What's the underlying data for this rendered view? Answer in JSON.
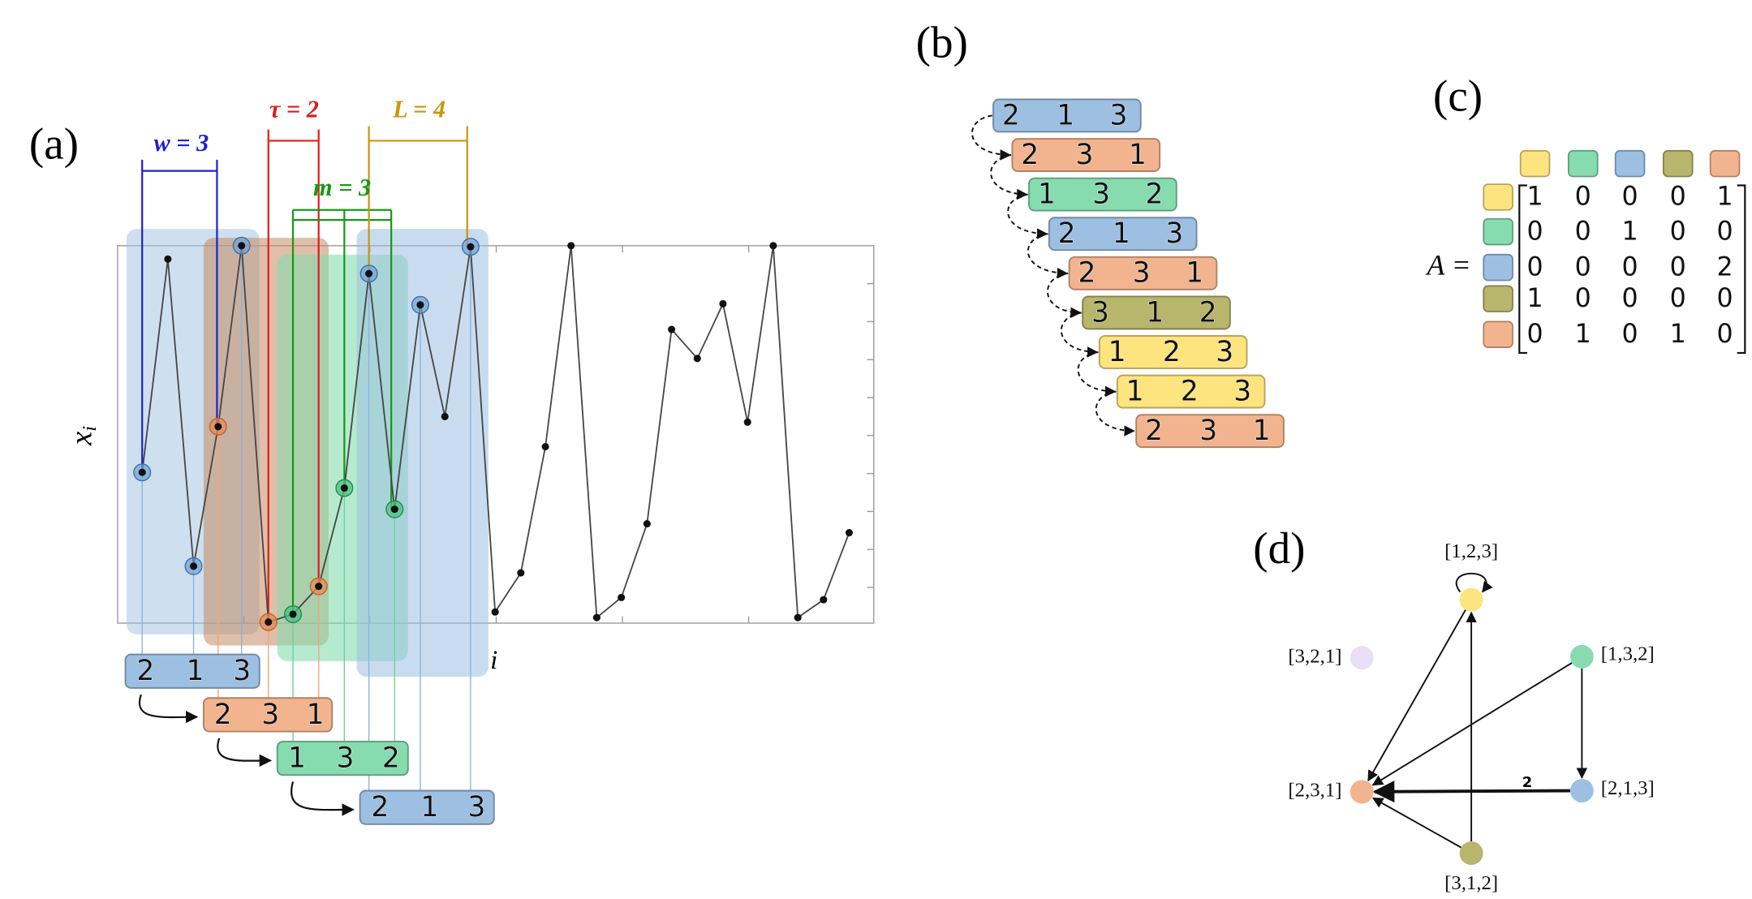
{
  "panel_a": {
    "label": "(a)",
    "y_label": {
      "symbol": "x",
      "subscript": "i"
    },
    "x_label": "i",
    "parameters": [
      {
        "text": "w = 3",
        "color": "#1f1fd6"
      },
      {
        "text": "τ = 2",
        "color": "#e01b1b"
      },
      {
        "text": "m = 3",
        "color": "#159a15"
      },
      {
        "text": "L = 4",
        "color": "#c8960c"
      }
    ],
    "patterns": [
      {
        "digits": [
          2,
          1,
          3
        ],
        "color": "#9dbfe2"
      },
      {
        "digits": [
          2,
          3,
          1
        ],
        "color": "#f2b48e"
      },
      {
        "digits": [
          1,
          3,
          2
        ],
        "color": "#86dcae"
      },
      {
        "digits": [
          2,
          1,
          3
        ],
        "color": "#9dbfe2"
      }
    ]
  },
  "panel_b": {
    "label": "(b)",
    "patterns": [
      {
        "digits": [
          2,
          1,
          3
        ],
        "color": "#9dbfe2"
      },
      {
        "digits": [
          2,
          3,
          1
        ],
        "color": "#f2b48e"
      },
      {
        "digits": [
          1,
          3,
          2
        ],
        "color": "#86dcae"
      },
      {
        "digits": [
          2,
          1,
          3
        ],
        "color": "#9dbfe2"
      },
      {
        "digits": [
          2,
          3,
          1
        ],
        "color": "#f2b48e"
      },
      {
        "digits": [
          3,
          1,
          2
        ],
        "color": "#b8b56c"
      },
      {
        "digits": [
          1,
          2,
          3
        ],
        "color": "#fde47e"
      },
      {
        "digits": [
          1,
          2,
          3
        ],
        "color": "#fde47e"
      },
      {
        "digits": [
          2,
          3,
          1
        ],
        "color": "#f2b48e"
      }
    ]
  },
  "panel_c": {
    "label": "(c)",
    "matrix_symbol": "A =",
    "pattern_colors": [
      "#fde47e",
      "#86dcae",
      "#9dbfe2",
      "#b8b56c",
      "#f2b48e"
    ],
    "rows": [
      [
        1,
        0,
        0,
        0,
        1
      ],
      [
        0,
        0,
        1,
        0,
        0
      ],
      [
        0,
        0,
        0,
        0,
        2
      ],
      [
        1,
        0,
        0,
        0,
        0
      ],
      [
        0,
        1,
        0,
        1,
        0
      ]
    ]
  },
  "panel_d": {
    "label": "(d)",
    "nodes": [
      {
        "label": "[1,2,3]",
        "color": "#fde47e"
      },
      {
        "label": "[1,3,2]",
        "color": "#86dcae"
      },
      {
        "label": "[3,2,1]",
        "color": "#e2d6f2"
      },
      {
        "label": "[2,3,1]",
        "color": "#f2b48e"
      },
      {
        "label": "[2,1,3]",
        "color": "#9dbfe2"
      },
      {
        "label": "[3,1,2]",
        "color": "#b8b56c"
      }
    ],
    "edge_weight_label": "2"
  }
}
